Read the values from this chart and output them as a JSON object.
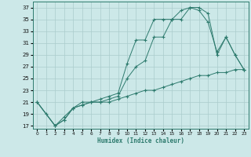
{
  "xlabel": "Humidex (Indice chaleur)",
  "bg_color": "#cce8e8",
  "line_color": "#2e7b6e",
  "grid_color": "#aacccc",
  "xlim": [
    -0.5,
    23.5
  ],
  "ylim": [
    16.5,
    38
  ],
  "yticks": [
    17,
    19,
    21,
    23,
    25,
    27,
    29,
    31,
    33,
    35,
    37
  ],
  "xticks": [
    0,
    1,
    2,
    3,
    4,
    5,
    6,
    7,
    8,
    9,
    10,
    11,
    12,
    13,
    14,
    15,
    16,
    17,
    18,
    19,
    20,
    21,
    22,
    23
  ],
  "line1_x": [
    0,
    1,
    2,
    3,
    4,
    5,
    6,
    7,
    8,
    9,
    10,
    11,
    12,
    13,
    14,
    15,
    16,
    17,
    18,
    19,
    20,
    21,
    22,
    23
  ],
  "line1_y": [
    21,
    19,
    17,
    18,
    20,
    20.5,
    21,
    21,
    21,
    21.5,
    22,
    22.5,
    23,
    23,
    23.5,
    24,
    24.5,
    25,
    25.5,
    25.5,
    26,
    26,
    26.5,
    26.5
  ],
  "line2_x": [
    0,
    2,
    3,
    4,
    5,
    6,
    7,
    8,
    9,
    10,
    11,
    12,
    13,
    14,
    15,
    16,
    17,
    18,
    19,
    20,
    21,
    22,
    23
  ],
  "line2_y": [
    21,
    17,
    18,
    20,
    20.5,
    21,
    21,
    21.5,
    22,
    25,
    27,
    28,
    32,
    32,
    35,
    35,
    37,
    37,
    36,
    29,
    32,
    29,
    26.5
  ],
  "line3_x": [
    0,
    2,
    3,
    4,
    5,
    6,
    7,
    8,
    9,
    10,
    11,
    12,
    13,
    14,
    15,
    16,
    17,
    18,
    19,
    20,
    21,
    22,
    23
  ],
  "line3_y": [
    21,
    17,
    18.5,
    20,
    21,
    21,
    21.5,
    22,
    22.5,
    27.5,
    31.5,
    31.5,
    35,
    35,
    35,
    36.5,
    37,
    36.5,
    34.5,
    29.5,
    32,
    29,
    26.5
  ]
}
